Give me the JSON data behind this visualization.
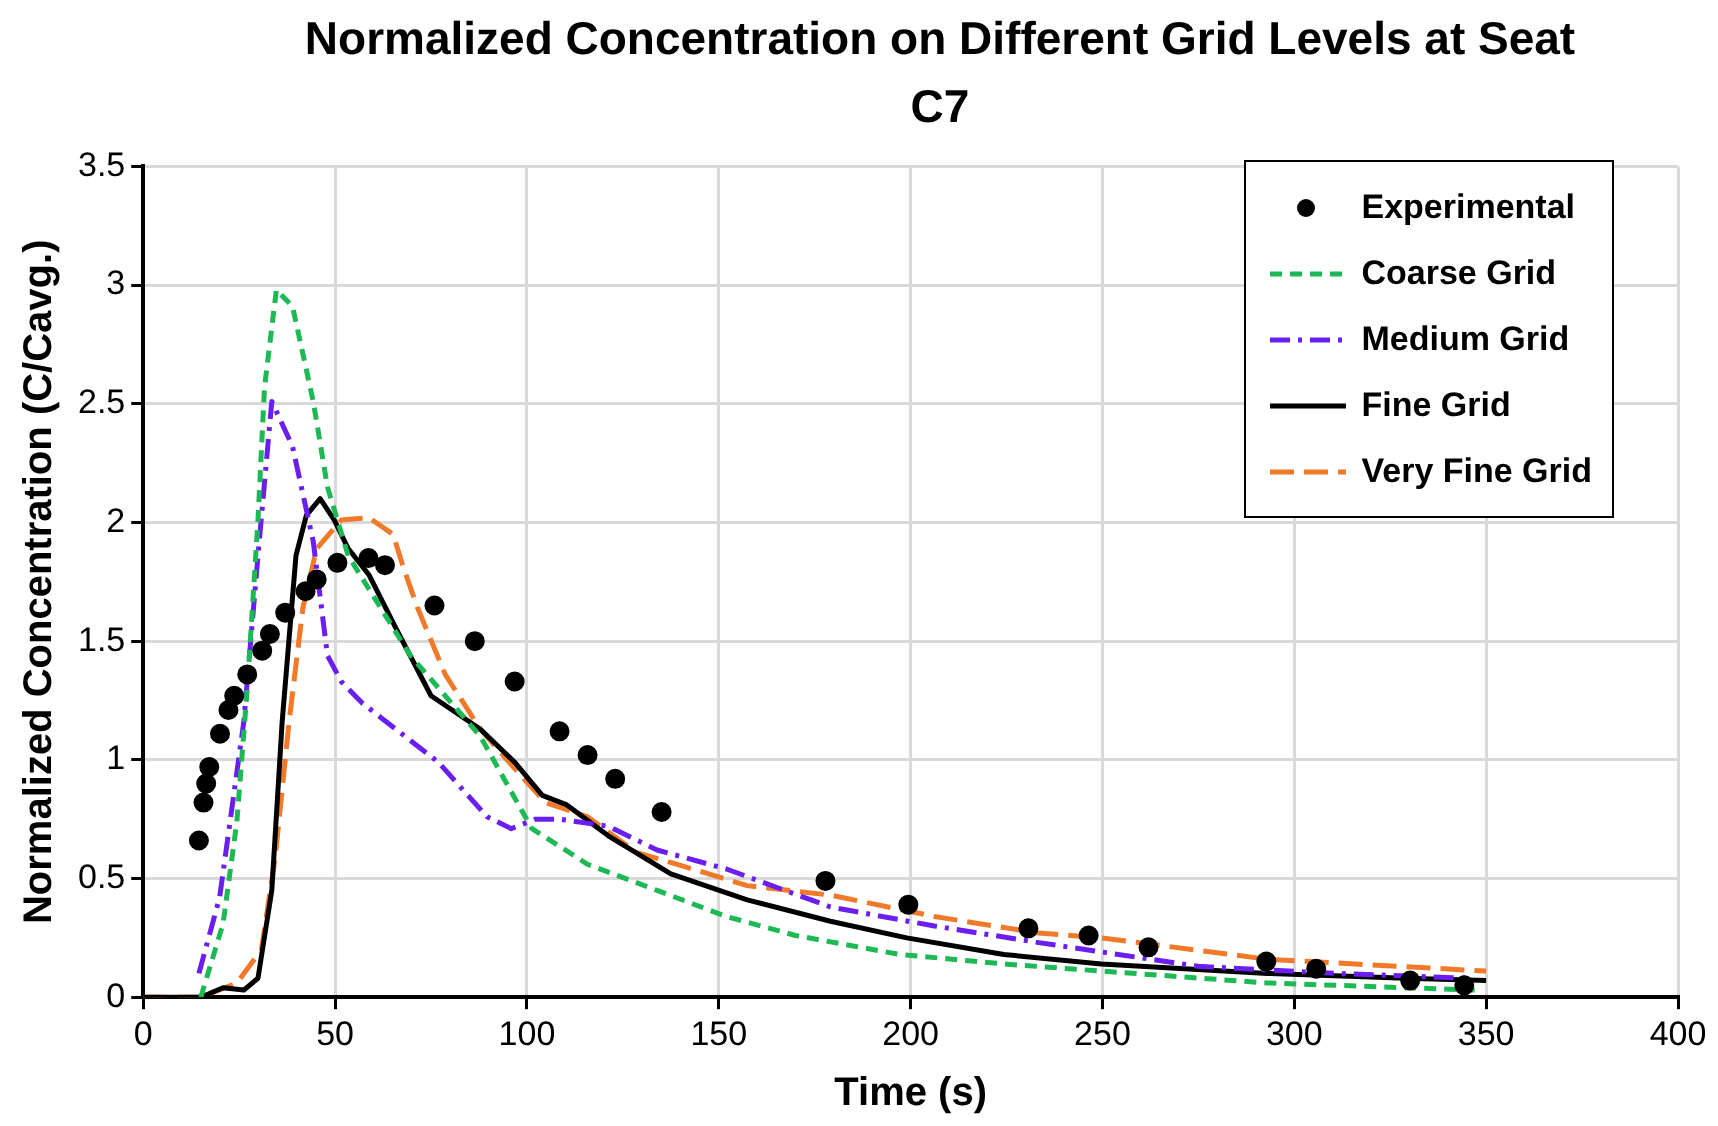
{
  "chart_data": {
    "type": "line",
    "title": "Normalized Concentration on Different Grid Levels at Seat C7",
    "xlabel": "Time (s)",
    "ylabel": "Normalized Concentration (C/Cavg.)",
    "xlim": [
      0,
      400
    ],
    "xticks": [
      0,
      50,
      100,
      150,
      200,
      250,
      300,
      350,
      400
    ],
    "ylim": [
      0,
      3.5
    ],
    "yticks": [
      0,
      0.5,
      1,
      1.5,
      2,
      2.5,
      3,
      3.5
    ],
    "grid": true,
    "legend": "top right",
    "series": [
      {
        "name": "Experimental",
        "type": "scatter",
        "marker": "circle",
        "color": "#000000",
        "x": [
          14.5,
          15.7,
          16.4,
          17.2,
          20,
          22.2,
          23.7,
          27.1,
          31,
          33,
          37,
          42.3,
          45.2,
          50.6,
          58.7,
          63,
          75.9,
          86.4,
          96.8,
          108.5,
          115.8,
          123,
          135.1,
          177.8,
          199.4,
          230.7,
          246.4,
          262,
          292.7,
          305.7,
          330.2,
          344.3
        ],
        "values": [
          0.66,
          0.82,
          0.9,
          0.97,
          1.11,
          1.21,
          1.27,
          1.36,
          1.46,
          1.53,
          1.62,
          1.71,
          1.76,
          1.83,
          1.85,
          1.82,
          1.65,
          1.5,
          1.33,
          1.12,
          1.02,
          0.92,
          0.78,
          0.49,
          0.39,
          0.29,
          0.26,
          0.21,
          0.15,
          0.12,
          0.07,
          0.05
        ]
      },
      {
        "name": "Coarse Grid",
        "line_style": "dashed",
        "color": "#1db954",
        "x": [
          15,
          20.8,
          24.4,
          27.1,
          29.9,
          31.6,
          34.7,
          38.9,
          44.3,
          48,
          53.4,
          69.6,
          87.8,
          101.3,
          115.8,
          133.9,
          152,
          170,
          197.2,
          224.3,
          249.7,
          293,
          347
        ],
        "values": [
          0,
          0.31,
          0.74,
          1.3,
          2.01,
          2.57,
          2.98,
          2.91,
          2.51,
          2.15,
          1.86,
          1.44,
          1.1,
          0.71,
          0.56,
          0.45,
          0.34,
          0.26,
          0.18,
          0.14,
          0.11,
          0.06,
          0.03
        ]
      },
      {
        "name": "Medium Grid",
        "line_style": "dashdot",
        "color": "#6a1ff0",
        "x": [
          14.5,
          19.9,
          26.2,
          29.9,
          33.5,
          38.9,
          44.3,
          48,
          51.6,
          57,
          76.9,
          89.6,
          95.9,
          102.2,
          108.5,
          121.2,
          133.9,
          152,
          179.1,
          206.2,
          233.4,
          275,
          311,
          345.5
        ],
        "values": [
          0.1,
          0.42,
          1.16,
          1.86,
          2.51,
          2.32,
          1.92,
          1.44,
          1.33,
          1.24,
          0.99,
          0.76,
          0.71,
          0.75,
          0.75,
          0.72,
          0.62,
          0.54,
          0.38,
          0.3,
          0.23,
          0.13,
          0.1,
          0.08
        ]
      },
      {
        "name": "Fine Grid",
        "line_style": "solid",
        "color": "#000000",
        "x": [
          0,
          15,
          20.8,
          26.2,
          29.9,
          33.5,
          36.2,
          39.8,
          42.5,
          46.1,
          49.8,
          53.4,
          58.8,
          66,
          75,
          87.8,
          96.8,
          104,
          110.4,
          121.2,
          137.5,
          157.4,
          179.1,
          199,
          224.3,
          249.7,
          293,
          329,
          350
        ],
        "values": [
          0,
          0,
          0.04,
          0.03,
          0.08,
          0.45,
          1.16,
          1.86,
          2.03,
          2.1,
          2.01,
          1.89,
          1.78,
          1.55,
          1.27,
          1.13,
          0.99,
          0.85,
          0.81,
          0.68,
          0.52,
          0.41,
          0.32,
          0.25,
          0.18,
          0.14,
          0.1,
          0.08,
          0.07
        ]
      },
      {
        "name": "Very Fine Grid",
        "line_style": "longdash",
        "color": "#f07a2a",
        "x": [
          0,
          15,
          24.4,
          30.8,
          34.4,
          38,
          41.6,
          45.2,
          51.6,
          58.8,
          65.1,
          67.8,
          71.5,
          78.7,
          87.8,
          98.6,
          104.9,
          115.8,
          128.5,
          141.1,
          157.4,
          179.1,
          206.2,
          233.4,
          249.7,
          293,
          350
        ],
        "values": [
          0,
          0,
          0.06,
          0.2,
          0.59,
          1.16,
          1.64,
          1.89,
          2.01,
          2.02,
          1.95,
          1.81,
          1.64,
          1.36,
          1.13,
          0.93,
          0.82,
          0.76,
          0.61,
          0.55,
          0.47,
          0.43,
          0.34,
          0.27,
          0.25,
          0.16,
          0.11
        ]
      }
    ]
  }
}
